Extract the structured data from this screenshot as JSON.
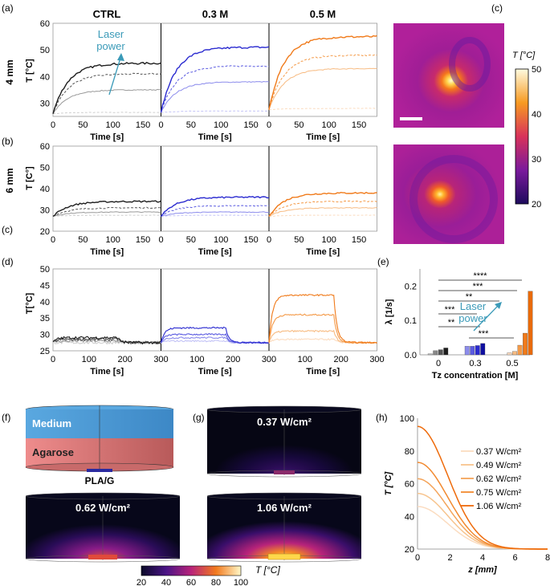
{
  "panel_labels": {
    "a": "(a)",
    "b": "(b)",
    "c_label": "(c)",
    "c_top": "(c)",
    "d": "(d)",
    "e": "(e)",
    "f": "(f)",
    "g": "(g)",
    "h": "(h)"
  },
  "row_labels": {
    "r4mm": "4 mm",
    "r6mm": "6 mm"
  },
  "col_labels": {
    "ctrl": "CTRL",
    "m03": "0.3 M",
    "m05": "0.5 M"
  },
  "axis": {
    "t_label_a": "T [°C]",
    "t_label_b": "T [C°]",
    "t_label_d": "T[°C]",
    "time_label": "Time [s]"
  },
  "colors": {
    "ctrl": [
      "#1e1e1e",
      "#555555",
      "#9a9a9a",
      "#cfcfcf"
    ],
    "m03": [
      "#2b2bd0",
      "#5a5ae0",
      "#8c8cec",
      "#c4c4f6"
    ],
    "m05": [
      "#f07a1a",
      "#f49a48",
      "#f7bb82",
      "#fbdcc0"
    ],
    "annot": "#3a9ab8"
  },
  "annotation_a": {
    "line1": "Laser",
    "line2": "power"
  },
  "annotation_e": {
    "line1": "Laser",
    "line2": "power"
  },
  "thermal": {
    "label": "T [°C]",
    "ticks": [
      "50",
      "40",
      "30",
      "20"
    ]
  },
  "panel_f": {
    "medium": "Medium",
    "agarose": "Agarose",
    "plag": "PLA/G"
  },
  "panel_g": {
    "p1": "0.37 W/cm²",
    "p2": "0.62 W/cm²",
    "p3": "1.06 W/cm²"
  },
  "sim_colorbar": {
    "ticks": [
      "20",
      "40",
      "60",
      "80",
      "100"
    ],
    "label": "T [°C]"
  },
  "chart_data": [
    {
      "id": "a",
      "type": "line",
      "title": "4 mm",
      "xlabel": "Time [s]",
      "ylabel": "T [°C]",
      "xlim": [
        0,
        180
      ],
      "ylim": [
        25,
        60
      ],
      "xticks": [
        "0",
        "50",
        "100",
        "150"
      ],
      "yticks": [
        "30",
        "40",
        "50",
        "60"
      ],
      "groups": [
        {
          "name": "CTRL",
          "plateaus": [
            26.5,
            35,
            41,
            45
          ]
        },
        {
          "name": "0.3 M",
          "plateaus": [
            27,
            38,
            44,
            51
          ]
        },
        {
          "name": "0.5 M",
          "plateaus": [
            28,
            43,
            48,
            55
          ]
        }
      ]
    },
    {
      "id": "b",
      "type": "line",
      "title": "6 mm",
      "xlabel": "Time [s]",
      "ylabel": "T [C°]",
      "xlim": [
        0,
        180
      ],
      "ylim": [
        20,
        60
      ],
      "xticks": [
        "0",
        "50",
        "100",
        "150"
      ],
      "yticks": [
        "20",
        "30",
        "40",
        "50",
        "60"
      ],
      "groups": [
        {
          "name": "CTRL",
          "plateaus": [
            27.5,
            29,
            31,
            34
          ]
        },
        {
          "name": "0.3 M",
          "plateaus": [
            27.5,
            29,
            32,
            36
          ]
        },
        {
          "name": "0.5 M",
          "plateaus": [
            27.5,
            31,
            34,
            38
          ]
        }
      ]
    },
    {
      "id": "d",
      "type": "line",
      "xlabel": "Time [s]",
      "ylabel": "T[°C]",
      "xlim": [
        0,
        300
      ],
      "ylim": [
        25,
        50
      ],
      "heat_off": 180,
      "xticks": [
        "0",
        "100",
        "200",
        "300"
      ],
      "yticks": [
        "25",
        "30",
        "35",
        "40",
        "45",
        "50"
      ],
      "groups": [
        {
          "name": "CTRL",
          "plateaus": [
            27.5,
            28,
            28.5,
            29
          ]
        },
        {
          "name": "0.3 M",
          "plateaus": [
            28,
            29,
            30,
            32
          ]
        },
        {
          "name": "0.5 M",
          "plateaus": [
            28.5,
            31,
            36,
            42
          ]
        }
      ]
    },
    {
      "id": "e",
      "type": "bar",
      "xlabel": "Tz concentration [M]",
      "ylabel": "λ [1/s]",
      "ylim": [
        0,
        0.25
      ],
      "yticks": [
        "0.0",
        "0.1",
        "0.2"
      ],
      "categories": [
        "0",
        "0.3",
        "0.5"
      ],
      "series_values": [
        [
          0.003,
          0.012,
          0.015,
          0.02
        ],
        [
          0.025,
          0.025,
          0.027,
          0.033
        ],
        [
          0.006,
          0.01,
          0.028,
          0.063,
          0.185
        ]
      ],
      "significance": [
        "****",
        "***",
        "**",
        "***",
        "**",
        "***"
      ]
    },
    {
      "id": "h",
      "type": "line",
      "xlabel": "z [mm]",
      "ylabel": "T [°C]",
      "xlim": [
        0,
        8
      ],
      "ylim": [
        20,
        100
      ],
      "xticks": [
        "0",
        "2",
        "4",
        "6",
        "8"
      ],
      "yticks": [
        "20",
        "40",
        "60",
        "80",
        "100"
      ],
      "series": [
        {
          "name": "0.37 W/cm²",
          "peak": 46
        },
        {
          "name": "0.49 W/cm²",
          "peak": 54
        },
        {
          "name": "0.62 W/cm²",
          "peak": 63
        },
        {
          "name": "0.75 W/cm²",
          "peak": 73
        },
        {
          "name": "1.06 W/cm²",
          "peak": 95
        }
      ]
    }
  ]
}
